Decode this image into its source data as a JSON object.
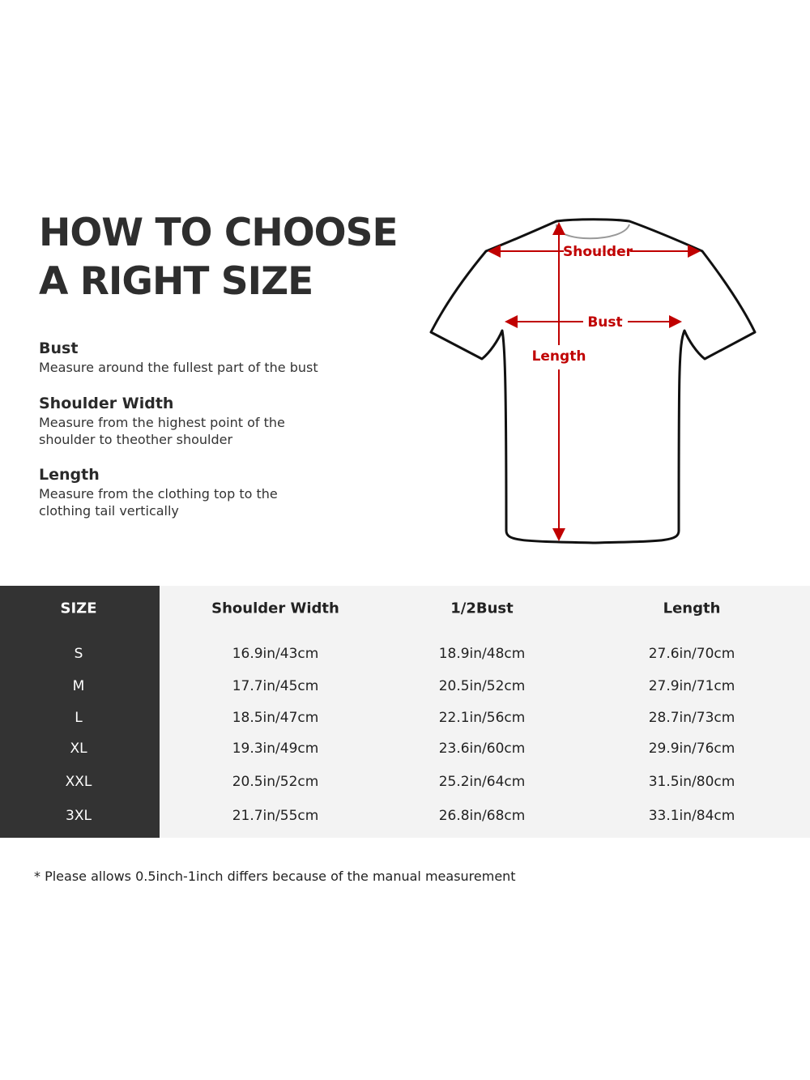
{
  "title": {
    "line1": "HOW TO CHOOSE",
    "line2": "A RIGHT SIZE"
  },
  "definitions": [
    {
      "term": "Bust",
      "desc": [
        "Measure around the fullest part of the bust"
      ]
    },
    {
      "term": "Shoulder Width",
      "desc": [
        "Measure from the highest point of the",
        "shoulder to theother shoulder"
      ]
    },
    {
      "term": "Length",
      "desc": [
        "Measure from the clothing top to the",
        "clothing tail vertically"
      ]
    }
  ],
  "diagram": {
    "shoulder_label": "Shoulder",
    "bust_label": "Bust",
    "length_label": "Length",
    "arrow_color": "#c00000"
  },
  "table": {
    "headers": [
      "SIZE",
      "Shoulder Width",
      "1/2Bust",
      "Length"
    ],
    "rows": [
      [
        "S",
        "16.9in/43cm",
        "18.9in/48cm",
        "27.6in/70cm"
      ],
      [
        "M",
        "17.7in/45cm",
        "20.5in/52cm",
        "27.9in/71cm"
      ],
      [
        "L",
        "18.5in/47cm",
        "22.1in/56cm",
        "28.7in/73cm"
      ],
      [
        "XL",
        "19.3in/49cm",
        "23.6in/60cm",
        "29.9in/76cm"
      ],
      [
        "XXL",
        "20.5in/52cm",
        "25.2in/64cm",
        "31.5in/80cm"
      ],
      [
        "3XL",
        "21.7in/55cm",
        "26.8in/68cm",
        "33.1in/84cm"
      ]
    ]
  },
  "note": "* Please allows 0.5inch-1inch differs because of the  manual measurement"
}
